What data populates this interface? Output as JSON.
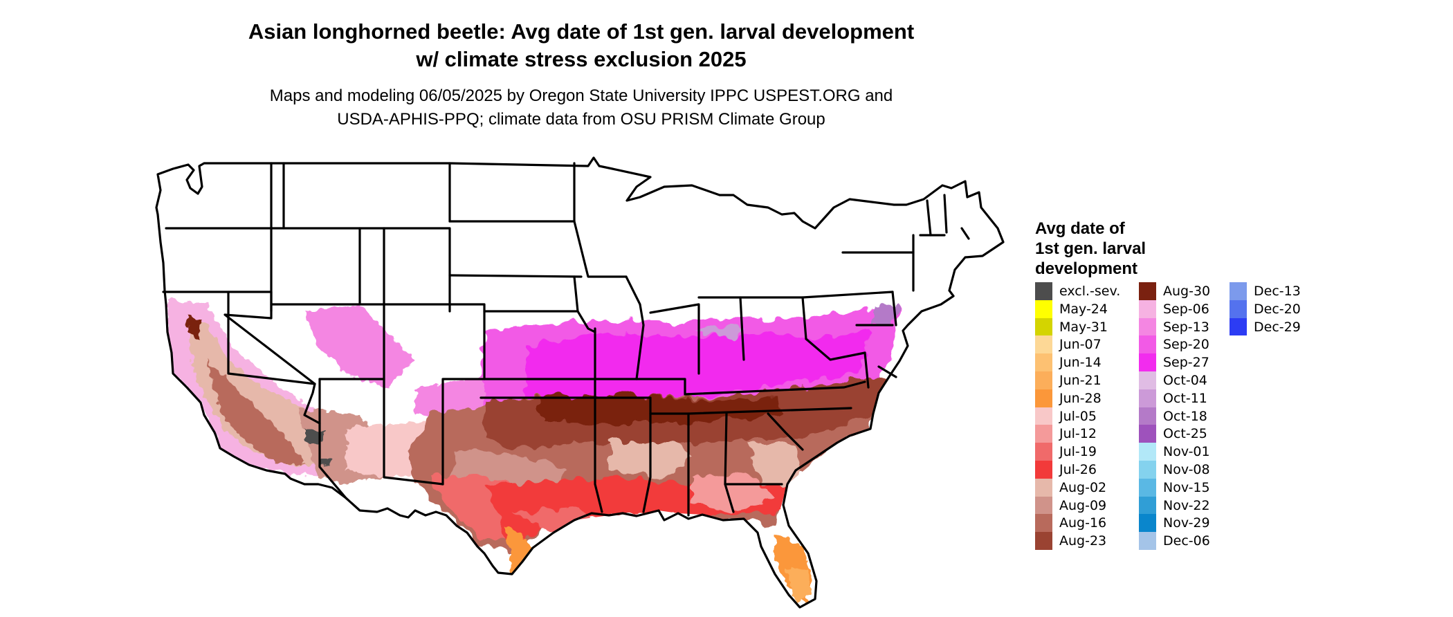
{
  "title": {
    "line1": "Asian longhorned beetle: Avg date of 1st gen. larval development",
    "line2": "w/ climate stress exclusion 2025"
  },
  "subtitle": {
    "line1": "Maps and modeling 06/05/2025 by Oregon State University IPPC USPEST.ORG and",
    "line2": "USDA-APHIS-PPQ; climate data from OSU PRISM Climate Group"
  },
  "legend": {
    "title_lines": [
      "Avg date of",
      "1st gen. larval",
      "development"
    ],
    "items": [
      {
        "label": "excl.-sev.",
        "color": "#4d4d4d"
      },
      {
        "label": "May-24",
        "color": "#ffff00"
      },
      {
        "label": "May-31",
        "color": "#d4d400"
      },
      {
        "label": "Jun-07",
        "color": "#fdd896"
      },
      {
        "label": "Jun-14",
        "color": "#fdc172"
      },
      {
        "label": "Jun-21",
        "color": "#fcae5a"
      },
      {
        "label": "Jun-28",
        "color": "#fb973a"
      },
      {
        "label": "Jul-05",
        "color": "#f8c8c8"
      },
      {
        "label": "Jul-12",
        "color": "#f49a9a"
      },
      {
        "label": "Jul-19",
        "color": "#f06a6a"
      },
      {
        "label": "Jul-26",
        "color": "#f23a3a"
      },
      {
        "label": "Aug-02",
        "color": "#e6b8aa"
      },
      {
        "label": "Aug-09",
        "color": "#d0938a"
      },
      {
        "label": "Aug-16",
        "color": "#b86a5c"
      },
      {
        "label": "Aug-23",
        "color": "#9a4332"
      },
      {
        "label": "Aug-30",
        "color": "#7a2110"
      },
      {
        "label": "Sep-06",
        "color": "#f6b2e2"
      },
      {
        "label": "Sep-13",
        "color": "#f486e2"
      },
      {
        "label": "Sep-20",
        "color": "#f25ae6"
      },
      {
        "label": "Sep-27",
        "color": "#f22cee"
      },
      {
        "label": "Oct-04",
        "color": "#e0bce4"
      },
      {
        "label": "Oct-11",
        "color": "#cc9ad8"
      },
      {
        "label": "Oct-18",
        "color": "#b47ac8"
      },
      {
        "label": "Oct-25",
        "color": "#9e52bc"
      },
      {
        "label": "Nov-01",
        "color": "#b2e8f8"
      },
      {
        "label": "Nov-08",
        "color": "#84d2ee"
      },
      {
        "label": "Nov-15",
        "color": "#5ab8e4"
      },
      {
        "label": "Nov-22",
        "color": "#309ed6"
      },
      {
        "label": "Nov-29",
        "color": "#0a86cc"
      },
      {
        "label": "Dec-06",
        "color": "#a4c4e8"
      },
      {
        "label": "Dec-13",
        "color": "#7c9aec"
      },
      {
        "label": "Dec-20",
        "color": "#5472ee"
      },
      {
        "label": "Dec-29",
        "color": "#2c3cf4"
      }
    ]
  },
  "map": {
    "boundary_color": "#000000",
    "unsuitable_color": "#ffffff"
  }
}
